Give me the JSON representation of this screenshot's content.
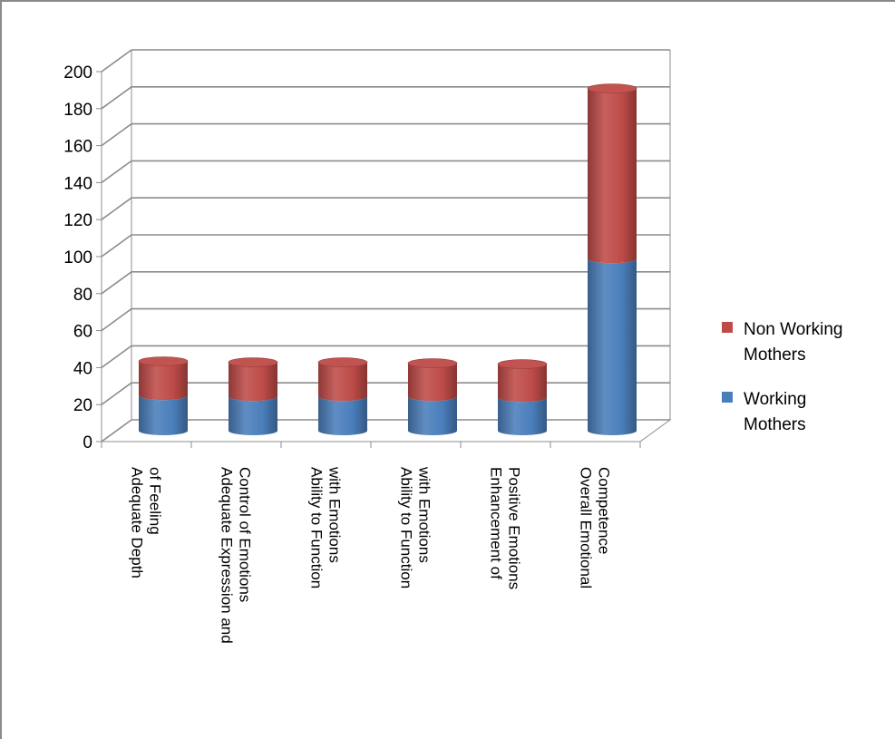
{
  "chart_data": {
    "type": "bar",
    "stacked": true,
    "style": "3d-cylinder",
    "title": "",
    "xlabel": "",
    "ylabel": "",
    "ylim": [
      0,
      200
    ],
    "yticks": [
      0,
      20,
      40,
      60,
      80,
      100,
      120,
      140,
      160,
      180,
      200
    ],
    "grid": true,
    "legend_position": "right",
    "categories": [
      [
        "Adequate Depth",
        "of Feeling"
      ],
      [
        "Adequate Expression and",
        "Control of Emotions"
      ],
      [
        "Ability to Function",
        "with Emotions"
      ],
      [
        "Ability to Function",
        "with Emotions"
      ],
      [
        "Enhancement of",
        "Positive Emotions"
      ],
      [
        "Overall Emotional",
        "Competence"
      ]
    ],
    "series": [
      {
        "name": "Working Mothers",
        "legend_lines": [
          "Working",
          "Mothers"
        ],
        "color": "#4a7ebb",
        "values": [
          19,
          18.5,
          18.5,
          18.5,
          18,
          93
        ]
      },
      {
        "name": "Non Working Mothers",
        "legend_lines": [
          "Non Working",
          "Mothers"
        ],
        "color": "#be4b48",
        "values": [
          18.5,
          18.5,
          18.5,
          18,
          18,
          92
        ]
      }
    ],
    "legend_order": [
      1,
      0
    ]
  }
}
